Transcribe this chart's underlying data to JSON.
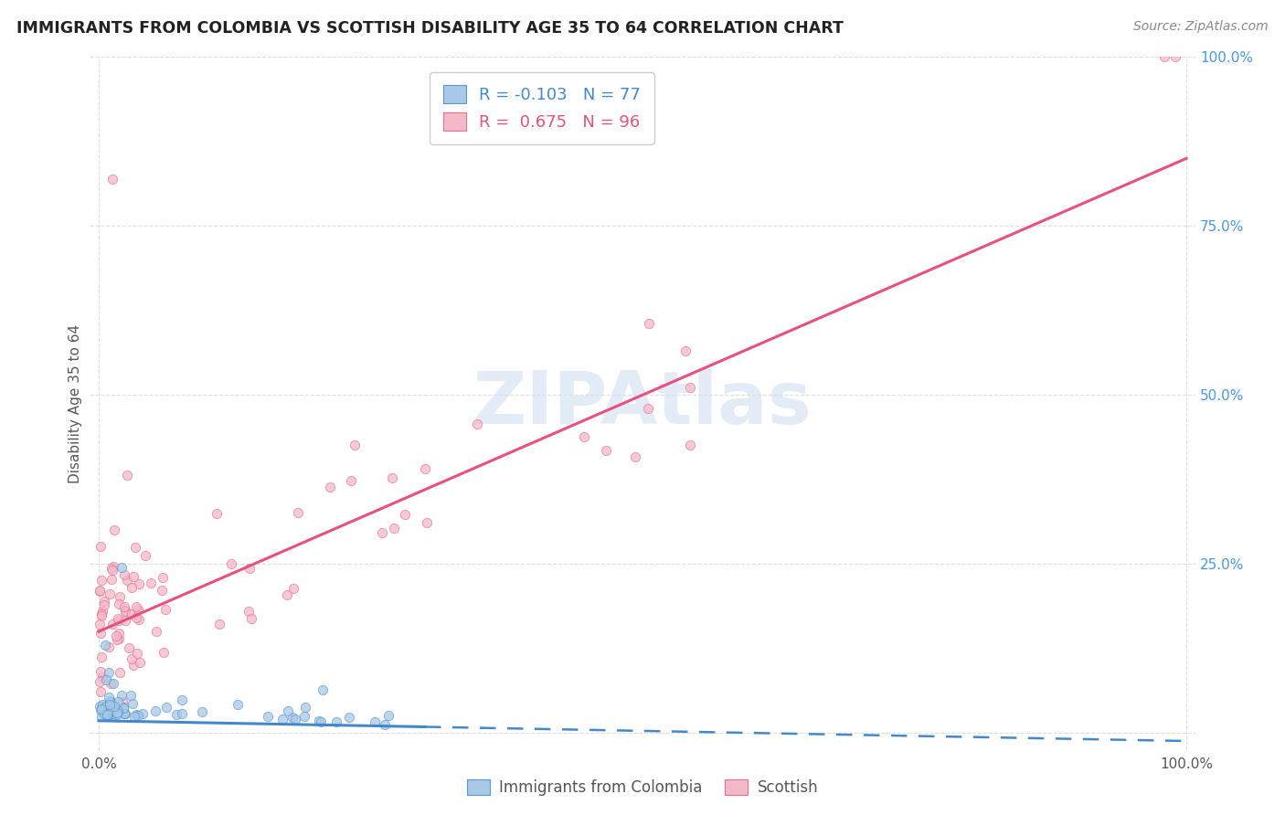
{
  "title": "IMMIGRANTS FROM COLOMBIA VS SCOTTISH DISABILITY AGE 35 TO 64 CORRELATION CHART",
  "source": "Source: ZipAtlas.com",
  "ylabel": "Disability Age 35 to 64",
  "legend_label_1": "Immigrants from Colombia",
  "legend_label_2": "Scottish",
  "R1": "-0.103",
  "N1": "77",
  "R2": "0.675",
  "N2": "96",
  "color_blue_fill": "#a8c8e8",
  "color_blue_edge": "#5599cc",
  "color_pink_fill": "#f5b8c8",
  "color_pink_edge": "#e87090",
  "color_trendline_blue": "#4488cc",
  "color_trendline_pink": "#e85080",
  "watermark_color": "#d0dff0",
  "right_axis_color": "#4499ee",
  "grid_color": "#dddddd",
  "title_color": "#222222",
  "label_color": "#555555",
  "source_color": "#888888"
}
